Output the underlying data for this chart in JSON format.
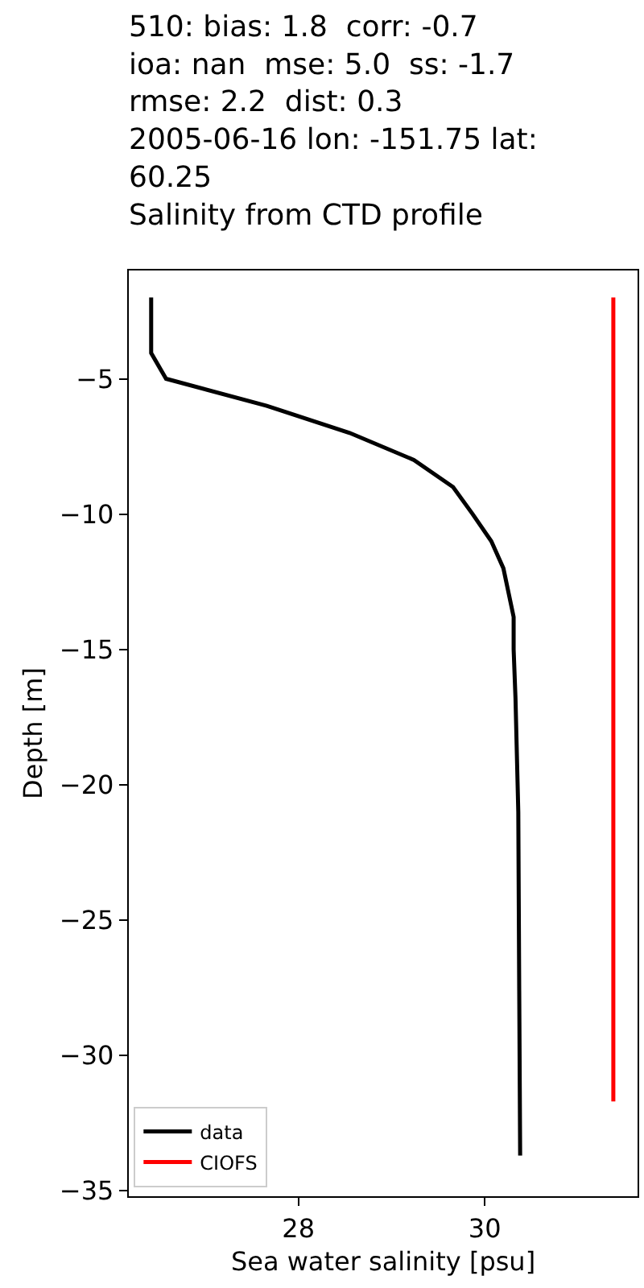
{
  "chart_data": {
    "type": "line",
    "title": "510: bias: 1.8  corr: -0.7\nioa: nan  mse: 5.0  ss: -1.7\nrmse: 2.2  dist: 0.3\n2005-06-16 lon: -151.75 lat:\n60.25\nSalinity from CTD profile",
    "xlabel": "Sea water salinity [psu]",
    "ylabel": "Depth [m]",
    "series": [
      {
        "name": "data",
        "color": "#000000",
        "x": [
          26.42,
          26.42,
          26.58,
          27.66,
          28.55,
          29.24,
          29.66,
          29.87,
          30.07,
          30.2,
          30.31,
          30.31,
          30.33,
          30.36,
          30.37,
          30.38
        ],
        "values": [
          -2,
          -4.05,
          -5,
          -6,
          -7,
          -8,
          -9,
          -10,
          -11,
          -12,
          -13.8,
          -15,
          -16.8,
          -21,
          -27.6,
          -33.7
        ]
      },
      {
        "name": "CIOFS",
        "color": "#ff0000",
        "x": [
          31.38,
          31.38
        ],
        "values": [
          -2,
          -31.7
        ]
      }
    ],
    "xlim": [
      26.18,
      31.64
    ],
    "xticks": [
      28,
      30
    ],
    "ylim": [
      -35.2,
      -1.0
    ],
    "yticks": [
      -5,
      -10,
      -15,
      -20,
      -25,
      -30,
      -35
    ],
    "grid": false,
    "legend": "bottom left",
    "marker": "none",
    "line_style": "solid"
  }
}
